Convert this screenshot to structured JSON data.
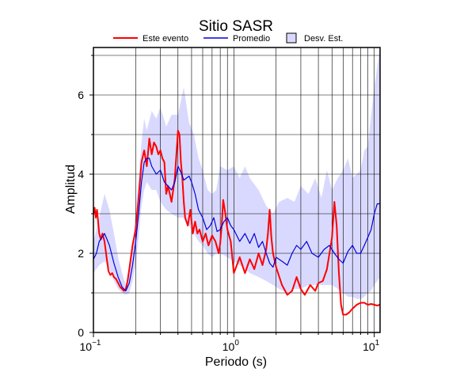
{
  "chart_data": {
    "type": "line",
    "title": "Sitio SASR",
    "xlabel": "Periodo (s)",
    "ylabel": "Amplitud",
    "xscale": "log",
    "xlim": [
      0.1,
      11
    ],
    "ylim": [
      0,
      7.2
    ],
    "x_ticks": [
      {
        "value": 0.1,
        "base": "10",
        "exp": "−1"
      },
      {
        "value": 1,
        "base": "10",
        "exp": "0"
      },
      {
        "value": 10,
        "base": "10",
        "exp": "1"
      }
    ],
    "y_ticks": [
      0,
      2,
      4,
      6
    ],
    "grid": true,
    "legend_position": "top",
    "colors": {
      "este_evento": "#ff0000",
      "promedio": "#0000dd",
      "desv_est": "#d9d9ff"
    },
    "series": [
      {
        "name": "Este evento",
        "x": [
          0.1,
          0.102,
          0.104,
          0.106,
          0.108,
          0.11,
          0.113,
          0.116,
          0.12,
          0.124,
          0.128,
          0.132,
          0.136,
          0.14,
          0.145,
          0.15,
          0.155,
          0.16,
          0.165,
          0.17,
          0.175,
          0.18,
          0.19,
          0.2,
          0.21,
          0.22,
          0.23,
          0.24,
          0.25,
          0.26,
          0.27,
          0.28,
          0.29,
          0.3,
          0.31,
          0.32,
          0.33,
          0.34,
          0.35,
          0.36,
          0.37,
          0.38,
          0.39,
          0.4,
          0.41,
          0.42,
          0.43,
          0.44,
          0.45,
          0.47,
          0.49,
          0.51,
          0.53,
          0.55,
          0.57,
          0.6,
          0.63,
          0.66,
          0.7,
          0.74,
          0.78,
          0.8,
          0.82,
          0.84,
          0.87,
          0.9,
          0.95,
          1.0,
          1.05,
          1.1,
          1.2,
          1.3,
          1.4,
          1.5,
          1.6,
          1.7,
          1.75,
          1.8,
          1.85,
          1.9,
          2.0,
          2.2,
          2.4,
          2.6,
          2.8,
          3.0,
          3.2,
          3.5,
          3.8,
          4.0,
          4.3,
          4.6,
          5.0,
          5.2,
          5.4,
          5.6,
          5.8,
          6.0,
          6.3,
          6.6,
          7.0,
          7.5,
          8.0,
          8.5,
          9.0,
          9.5,
          10.0,
          10.5,
          11.0
        ],
        "values": [
          3.0,
          3.15,
          2.9,
          3.1,
          2.8,
          2.5,
          2.35,
          2.5,
          2.3,
          1.9,
          1.55,
          1.45,
          1.5,
          1.4,
          1.35,
          1.25,
          1.15,
          1.1,
          1.05,
          1.1,
          1.3,
          1.6,
          2.2,
          2.6,
          3.4,
          4.3,
          4.6,
          4.2,
          4.9,
          4.5,
          4.8,
          4.7,
          4.5,
          4.6,
          4.4,
          4.3,
          3.5,
          3.7,
          3.5,
          3.3,
          3.6,
          3.9,
          4.5,
          5.1,
          5.0,
          4.3,
          3.9,
          3.3,
          2.9,
          2.7,
          3.1,
          2.5,
          2.8,
          2.5,
          2.6,
          2.3,
          2.5,
          2.2,
          2.45,
          2.3,
          2.0,
          2.25,
          2.7,
          3.35,
          3.0,
          2.6,
          2.3,
          1.5,
          1.7,
          1.9,
          1.5,
          1.85,
          1.6,
          2.0,
          1.7,
          2.1,
          2.5,
          3.1,
          2.4,
          2.0,
          1.65,
          1.2,
          0.95,
          1.05,
          1.4,
          1.1,
          0.95,
          1.2,
          1.05,
          1.25,
          1.3,
          1.6,
          2.4,
          3.3,
          2.7,
          1.5,
          0.7,
          0.45,
          0.45,
          0.5,
          0.6,
          0.7,
          0.75,
          0.75,
          0.7,
          0.72,
          0.7,
          0.68,
          0.7
        ]
      },
      {
        "name": "Promedio",
        "x": [
          0.1,
          0.105,
          0.11,
          0.115,
          0.12,
          0.125,
          0.13,
          0.14,
          0.15,
          0.16,
          0.17,
          0.18,
          0.19,
          0.2,
          0.21,
          0.22,
          0.23,
          0.24,
          0.25,
          0.26,
          0.28,
          0.3,
          0.32,
          0.34,
          0.36,
          0.38,
          0.4,
          0.42,
          0.44,
          0.46,
          0.48,
          0.5,
          0.53,
          0.56,
          0.6,
          0.64,
          0.68,
          0.72,
          0.76,
          0.8,
          0.85,
          0.9,
          0.95,
          1.0,
          1.1,
          1.2,
          1.3,
          1.4,
          1.5,
          1.6,
          1.7,
          1.8,
          1.9,
          2.0,
          2.2,
          2.4,
          2.6,
          2.8,
          3.0,
          3.3,
          3.6,
          4.0,
          4.4,
          4.8,
          5.2,
          5.6,
          6.0,
          6.5,
          7.0,
          7.5,
          8.0,
          8.5,
          9.0,
          9.5,
          10.0,
          10.5,
          11.0
        ],
        "values": [
          1.85,
          2.0,
          2.3,
          2.4,
          2.5,
          2.35,
          2.2,
          1.75,
          1.4,
          1.15,
          1.05,
          1.25,
          1.7,
          2.3,
          3.0,
          3.8,
          4.3,
          4.4,
          4.4,
          4.2,
          4.0,
          4.1,
          3.8,
          3.7,
          3.6,
          3.8,
          4.2,
          4.05,
          3.85,
          3.9,
          3.95,
          3.8,
          3.5,
          3.1,
          2.9,
          2.6,
          2.7,
          2.9,
          2.55,
          2.6,
          2.8,
          2.9,
          2.7,
          2.6,
          2.3,
          2.5,
          2.25,
          2.5,
          2.15,
          2.3,
          2.0,
          1.75,
          1.65,
          1.9,
          1.8,
          1.7,
          2.0,
          2.2,
          2.1,
          2.3,
          2.0,
          1.9,
          2.1,
          2.2,
          2.0,
          1.85,
          1.75,
          2.05,
          2.2,
          2.0,
          2.0,
          2.2,
          2.4,
          2.6,
          3.0,
          3.25,
          3.25
        ]
      }
    ],
    "band": {
      "name": "Desv. Est.",
      "x": [
        0.1,
        0.11,
        0.12,
        0.13,
        0.14,
        0.15,
        0.16,
        0.17,
        0.18,
        0.19,
        0.2,
        0.21,
        0.22,
        0.23,
        0.24,
        0.26,
        0.28,
        0.3,
        0.33,
        0.36,
        0.4,
        0.44,
        0.48,
        0.52,
        0.56,
        0.6,
        0.65,
        0.7,
        0.75,
        0.8,
        0.9,
        1.0,
        1.1,
        1.2,
        1.3,
        1.5,
        1.7,
        1.9,
        2.1,
        2.4,
        2.7,
        3.0,
        3.4,
        3.8,
        4.2,
        4.6,
        5.0,
        5.5,
        6.0,
        6.5,
        7.0,
        7.5,
        8.0,
        8.5,
        9.0,
        9.5,
        10.0,
        10.5,
        11.0
      ],
      "upper": [
        2.3,
        2.9,
        3.5,
        3.1,
        2.5,
        1.9,
        1.5,
        1.2,
        1.5,
        2.2,
        3.1,
        3.9,
        4.8,
        5.4,
        5.1,
        5.6,
        5.4,
        5.7,
        5.2,
        5.5,
        5.5,
        6.2,
        5.3,
        5.0,
        4.4,
        4.1,
        3.6,
        3.5,
        3.6,
        4.2,
        4.1,
        4.2,
        3.9,
        4.2,
        3.9,
        3.6,
        3.2,
        3.0,
        3.3,
        3.4,
        3.3,
        3.7,
        3.5,
        3.9,
        3.4,
        4.1,
        3.6,
        3.9,
        4.1,
        4.4,
        3.9,
        4.0,
        4.1,
        4.6,
        4.7,
        5.5,
        6.2,
        6.7,
        7.2
      ],
      "lower": [
        1.5,
        1.7,
        1.8,
        1.6,
        1.3,
        1.1,
        1.0,
        0.95,
        1.0,
        1.3,
        1.7,
        2.4,
        3.2,
        3.6,
        3.8,
        3.6,
        3.6,
        3.3,
        3.1,
        3.0,
        2.9,
        2.9,
        2.7,
        2.5,
        2.3,
        2.2,
        2.0,
        1.9,
        2.0,
        2.0,
        1.9,
        1.8,
        1.7,
        1.6,
        1.5,
        1.4,
        1.3,
        1.2,
        1.1,
        1.0,
        1.1,
        1.1,
        1.2,
        1.2,
        1.2,
        1.2,
        1.2,
        1.1,
        1.0,
        0.9,
        0.9,
        0.85,
        0.85,
        0.9,
        1.0,
        1.05,
        1.2,
        1.3,
        1.4
      ]
    }
  }
}
